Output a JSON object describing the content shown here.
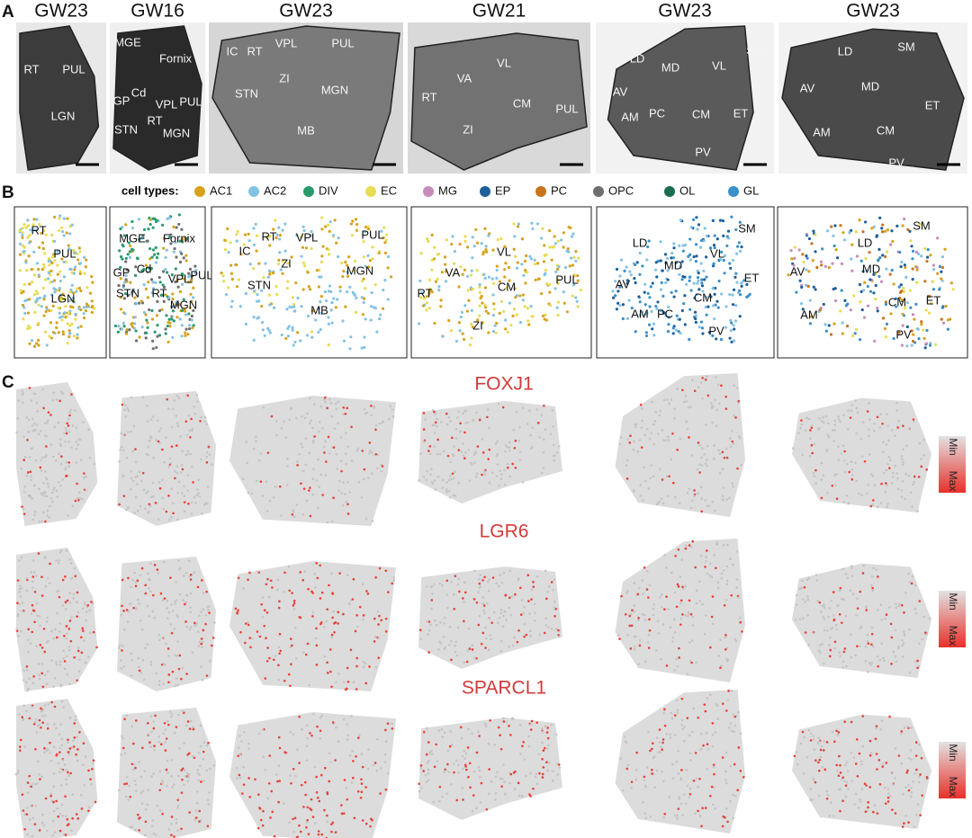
{
  "panel_a": {
    "label": "A",
    "images": [
      {
        "title": "GW23",
        "regions": [
          "RT",
          "PUL",
          "LGN"
        ]
      },
      {
        "title": "GW16",
        "regions": [
          "MGE",
          "Fornix",
          "Cd",
          "GP",
          "VPL",
          "PUL",
          "STN",
          "RT",
          "MGN"
        ]
      },
      {
        "title": "GW23",
        "regions": [
          "IC",
          "RT",
          "VPL",
          "PUL",
          "ZI",
          "STN",
          "MGN",
          "MB"
        ]
      },
      {
        "title": "GW21",
        "regions": [
          "VL",
          "VA",
          "RT",
          "CM",
          "PUL",
          "ZI"
        ]
      },
      {
        "title": "GW23",
        "regions": [
          "SM",
          "LD",
          "MD",
          "VL",
          "AV",
          "AM",
          "PC",
          "CM",
          "ET",
          "PV"
        ]
      },
      {
        "title": "GW23",
        "regions": [
          "LD",
          "SM",
          "AV",
          "MD",
          "ET",
          "AM",
          "CM",
          "PV"
        ]
      }
    ]
  },
  "panel_b": {
    "label": "B",
    "legend_title": "cell types:",
    "cell_types": [
      {
        "name": "AC1",
        "color": "#d6a21e"
      },
      {
        "name": "AC2",
        "color": "#84c2e4"
      },
      {
        "name": "DIV",
        "color": "#2a9a6c"
      },
      {
        "name": "EC",
        "color": "#e8dc52"
      },
      {
        "name": "MG",
        "color": "#c58cba"
      },
      {
        "name": "EP",
        "color": "#1f5f9a"
      },
      {
        "name": "PC",
        "color": "#c8741e"
      },
      {
        "name": "OPC",
        "color": "#6e6e6e"
      },
      {
        "name": "OL",
        "color": "#1a6e4e"
      },
      {
        "name": "GL",
        "color": "#3a90c8"
      }
    ],
    "sections": [
      {
        "regions": [
          "RT",
          "PUL",
          "LGN"
        ]
      },
      {
        "regions": [
          "MGE",
          "Fornix",
          "GP",
          "Cd",
          "VPL",
          "PUL",
          "STN",
          "RT",
          "MGN"
        ]
      },
      {
        "regions": [
          "IC",
          "RT",
          "VPL",
          "PUL",
          "ZI",
          "STN",
          "MGN",
          "MB"
        ]
      },
      {
        "regions": [
          "VL",
          "VA",
          "CM",
          "PUL",
          "RT",
          "ZI"
        ]
      },
      {
        "regions": [
          "LD",
          "SM",
          "MD",
          "VL",
          "AV",
          "ET",
          "CM",
          "AM",
          "PC",
          "PV"
        ]
      },
      {
        "regions": [
          "LD",
          "SM",
          "AV",
          "MD",
          "CM",
          "ET",
          "AM",
          "PV"
        ]
      }
    ]
  },
  "panel_c": {
    "label": "C",
    "genes": [
      {
        "name": "FOXJ1",
        "scale_min": "Min",
        "scale_max": "Max"
      },
      {
        "name": "LGR6",
        "scale_min": "Min",
        "scale_max": "Max"
      },
      {
        "name": "SPARCL1",
        "scale_min": "Min",
        "scale_max": "Max"
      }
    ]
  }
}
